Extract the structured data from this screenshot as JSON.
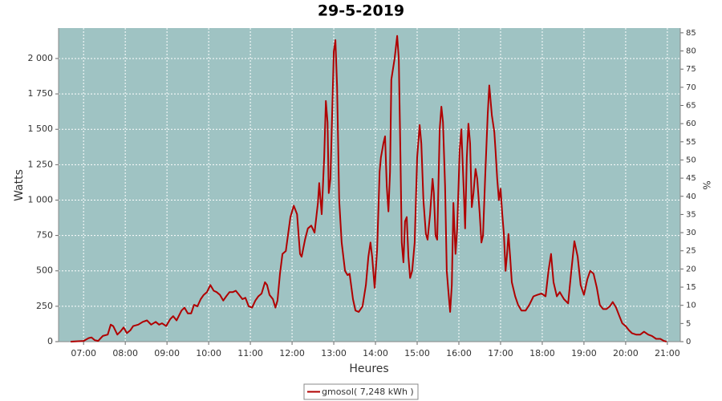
{
  "chart_data": {
    "type": "line",
    "title": "29-5-2019",
    "x_label": "Heures",
    "y_label": "Watts",
    "y2_label": "%",
    "x": [
      6.69,
      7.0,
      7.12,
      7.19,
      7.27,
      7.35,
      7.46,
      7.58,
      7.65,
      7.71,
      7.81,
      7.88,
      7.96,
      8.04,
      8.12,
      8.19,
      8.31,
      8.42,
      8.52,
      8.62,
      8.73,
      8.81,
      8.88,
      8.98,
      9.08,
      9.15,
      9.23,
      9.35,
      9.42,
      9.5,
      9.58,
      9.65,
      9.73,
      9.81,
      9.88,
      9.96,
      10.04,
      10.12,
      10.19,
      10.27,
      10.35,
      10.42,
      10.5,
      10.58,
      10.65,
      10.73,
      10.81,
      10.88,
      10.96,
      11.04,
      11.12,
      11.19,
      11.27,
      11.35,
      11.4,
      11.46,
      11.54,
      11.6,
      11.65,
      11.71,
      11.77,
      11.85,
      11.96,
      12.04,
      12.12,
      12.19,
      12.23,
      12.31,
      12.38,
      12.46,
      12.54,
      12.62,
      12.65,
      12.71,
      12.77,
      12.81,
      12.85,
      12.88,
      12.92,
      13.0,
      13.04,
      13.08,
      13.13,
      13.19,
      13.27,
      13.33,
      13.38,
      13.46,
      13.52,
      13.6,
      13.69,
      13.77,
      13.83,
      13.88,
      13.92,
      13.98,
      14.04,
      14.1,
      14.13,
      14.19,
      14.23,
      14.27,
      14.31,
      14.35,
      14.38,
      14.46,
      14.52,
      14.56,
      14.6,
      14.63,
      14.67,
      14.71,
      14.75,
      14.79,
      14.83,
      14.88,
      14.94,
      15.0,
      15.06,
      15.1,
      15.15,
      15.21,
      15.25,
      15.31,
      15.37,
      15.4,
      15.44,
      15.48,
      15.54,
      15.58,
      15.62,
      15.67,
      15.71,
      15.75,
      15.79,
      15.83,
      15.87,
      15.92,
      15.96,
      16.02,
      16.06,
      16.12,
      16.15,
      16.19,
      16.23,
      16.27,
      16.31,
      16.35,
      16.4,
      16.44,
      16.5,
      16.54,
      16.58,
      16.63,
      16.69,
      16.73,
      16.79,
      16.85,
      16.88,
      16.92,
      16.96,
      17.0,
      17.04,
      17.08,
      17.12,
      17.15,
      17.19,
      17.23,
      17.27,
      17.35,
      17.42,
      17.5,
      17.6,
      17.69,
      17.79,
      17.88,
      17.98,
      18.08,
      18.15,
      18.21,
      18.27,
      18.35,
      18.42,
      18.52,
      18.62,
      18.69,
      18.77,
      18.85,
      18.92,
      19.0,
      19.08,
      19.15,
      19.23,
      19.31,
      19.38,
      19.46,
      19.54,
      19.62,
      19.69,
      19.77,
      19.85,
      19.92,
      20.0,
      20.08,
      20.15,
      20.25,
      20.35,
      20.44,
      20.54,
      20.63,
      20.73,
      20.83,
      20.92,
      20.98
    ],
    "series": [
      {
        "name": "gmosol( 7,248 kWh )",
        "color": "#b00000",
        "values": [
          0,
          5,
          25,
          30,
          10,
          5,
          40,
          50,
          120,
          110,
          50,
          70,
          100,
          60,
          80,
          110,
          120,
          140,
          150,
          120,
          140,
          120,
          130,
          110,
          160,
          180,
          150,
          220,
          240,
          200,
          200,
          260,
          250,
          300,
          330,
          350,
          400,
          360,
          350,
          330,
          290,
          320,
          350,
          350,
          360,
          330,
          300,
          310,
          250,
          240,
          290,
          320,
          340,
          420,
          400,
          330,
          300,
          240,
          290,
          480,
          620,
          640,
          880,
          960,
          900,
          620,
          600,
          720,
          800,
          820,
          770,
          980,
          1120,
          900,
          1300,
          1700,
          1550,
          1050,
          1150,
          2050,
          2130,
          1800,
          1000,
          700,
          500,
          470,
          480,
          300,
          220,
          210,
          250,
          400,
          600,
          700,
          600,
          380,
          650,
          1200,
          1300,
          1400,
          1450,
          1100,
          920,
          1200,
          1850,
          2000,
          2160,
          2000,
          1300,
          700,
          560,
          850,
          880,
          600,
          450,
          500,
          700,
          1300,
          1530,
          1400,
          1000,
          760,
          720,
          900,
          1150,
          1050,
          750,
          720,
          1500,
          1660,
          1550,
          1100,
          500,
          350,
          210,
          400,
          980,
          620,
          800,
          1350,
          1500,
          1050,
          800,
          1300,
          1540,
          1400,
          950,
          1050,
          1220,
          1150,
          900,
          700,
          750,
          1150,
          1600,
          1810,
          1600,
          1480,
          1350,
          1150,
          1000,
          1080,
          900,
          760,
          500,
          600,
          760,
          600,
          420,
          320,
          260,
          220,
          220,
          260,
          320,
          330,
          340,
          320,
          500,
          620,
          420,
          320,
          350,
          300,
          270,
          480,
          710,
          600,
          400,
          330,
          440,
          500,
          480,
          380,
          260,
          230,
          230,
          250,
          280,
          240,
          180,
          130,
          110,
          80,
          60,
          50,
          50,
          70,
          50,
          40,
          20,
          20,
          5,
          0
        ]
      }
    ],
    "xlim": [
      6.4,
      21.31
    ],
    "xticks": [
      {
        "value": 7,
        "label": "07:00"
      },
      {
        "value": 8,
        "label": "08:00"
      },
      {
        "value": 9,
        "label": "09:00"
      },
      {
        "value": 10,
        "label": "10:00"
      },
      {
        "value": 11,
        "label": "11:00"
      },
      {
        "value": 12,
        "label": "12:00"
      },
      {
        "value": 13,
        "label": "13:00"
      },
      {
        "value": 14,
        "label": "14:00"
      },
      {
        "value": 15,
        "label": "15:00"
      },
      {
        "value": 16,
        "label": "16:00"
      },
      {
        "value": 17,
        "label": "17:00"
      },
      {
        "value": 18,
        "label": "18:00"
      },
      {
        "value": 19,
        "label": "19:00"
      },
      {
        "value": 20,
        "label": "20:00"
      },
      {
        "value": 21,
        "label": "21:00"
      }
    ],
    "ylim": [
      0,
      2215
    ],
    "yticks": [
      0,
      250,
      500,
      750,
      {
        "value": 1000,
        "label": "1 000"
      },
      {
        "value": 1250,
        "label": "1 250"
      },
      {
        "value": 1500,
        "label": "1 500"
      },
      {
        "value": 1750,
        "label": "1 750"
      },
      {
        "value": 2000,
        "label": "2 000"
      }
    ],
    "y2lim": [
      0,
      86.3
    ],
    "y2ticks": [
      0,
      5,
      10,
      15,
      20,
      25,
      30,
      35,
      40,
      45,
      50,
      55,
      60,
      65,
      70,
      75,
      80,
      85
    ],
    "grid": true,
    "background": "#9fc3c3"
  }
}
